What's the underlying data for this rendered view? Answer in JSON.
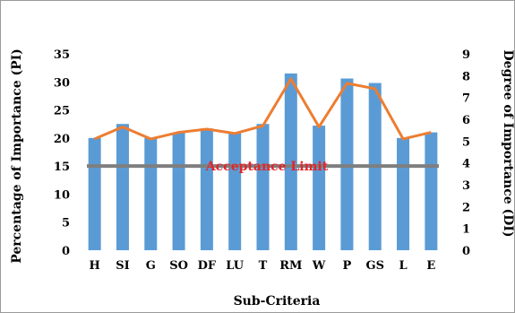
{
  "chart_data": {
    "type": "bar",
    "xlabel": "Sub-Criteria",
    "ylabel_left": "Percentage of Importance (PI)",
    "ylabel_right": "Degree of Importance (DI)",
    "ylim_left": [
      0,
      35
    ],
    "yticks_left": [
      "0",
      "5",
      "10",
      "15",
      "20",
      "25",
      "30",
      "35"
    ],
    "ylim_right": [
      0,
      9
    ],
    "yticks_right": [
      "0",
      "1",
      "2",
      "3",
      "4",
      "5",
      "6",
      "7",
      "8",
      "9"
    ],
    "categories": [
      "H",
      "SI",
      "G",
      "SO",
      "DF",
      "LU",
      "T",
      "RM",
      "W",
      "P",
      "GS",
      "L",
      "E"
    ],
    "series": [
      {
        "axis": "left",
        "kind": "bar",
        "color": "#5b9bd5",
        "values": [
          20.0,
          22.5,
          20.0,
          21.0,
          21.7,
          21.0,
          22.5,
          31.5,
          22.2,
          30.6,
          29.8,
          20.0,
          21.0
        ]
      },
      {
        "axis": "right",
        "kind": "line",
        "color": "#ed7d31",
        "values": [
          5.1,
          5.65,
          5.1,
          5.4,
          5.55,
          5.35,
          5.7,
          7.85,
          5.65,
          7.65,
          7.4,
          5.1,
          5.4
        ]
      }
    ],
    "reference_line": {
      "label": "Acceptance Limit",
      "axis": "left",
      "value": 15,
      "color": "#7f7f7f",
      "label_color": "#e0262c"
    },
    "grid": false,
    "legend": "none"
  }
}
